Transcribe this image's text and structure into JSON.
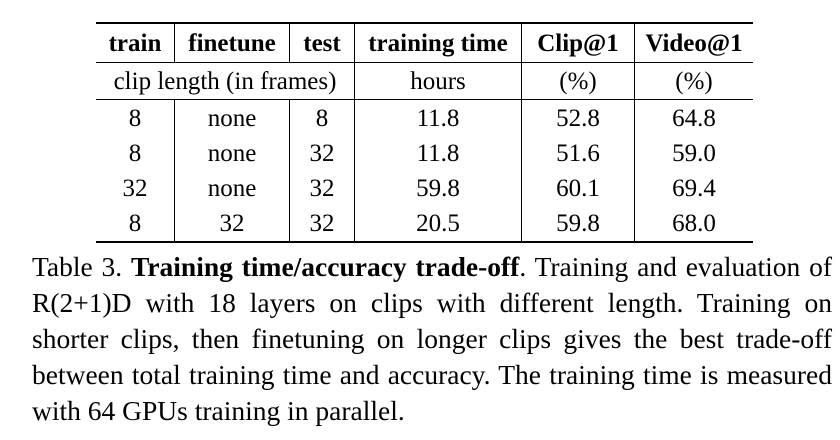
{
  "table": {
    "headers": [
      "train",
      "finetune",
      "test",
      "training time",
      "Clip@1",
      "Video@1"
    ],
    "units": {
      "clip_length": "clip length (in frames)",
      "training_time": "hours",
      "clip_at1": "(%)",
      "video_at1": "(%)"
    },
    "rows": [
      [
        "8",
        "none",
        "8",
        "11.8",
        "52.8",
        "64.8"
      ],
      [
        "8",
        "none",
        "32",
        "11.8",
        "51.6",
        "59.0"
      ],
      [
        "32",
        "none",
        "32",
        "59.8",
        "60.1",
        "69.4"
      ],
      [
        "8",
        "32",
        "32",
        "20.5",
        "59.8",
        "68.0"
      ]
    ]
  },
  "caption": {
    "label": "Table 3.",
    "title": "Training time/accuracy trade-off",
    "body": ". Training and evaluation of R(2+1)D with 18 layers on clips with different length. Training on shorter clips, then finetuning on longer clips gives the best trade-off between total training time and accuracy. The training time is measured with 64 GPUs training in parallel."
  }
}
